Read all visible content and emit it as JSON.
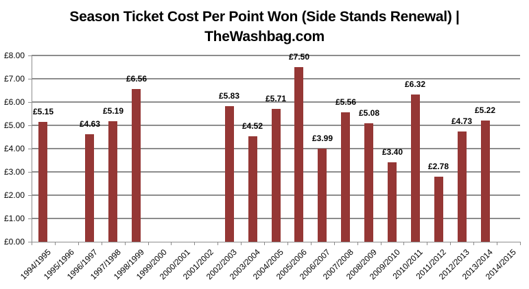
{
  "chart_data": {
    "type": "bar",
    "title": "Season Ticket Cost Per Point Won (Side Stands Renewal) | TheWashbag.com",
    "title_lines": [
      "Season Ticket Cost Per Point Won (Side Stands Renewal) |",
      "TheWashbag.com"
    ],
    "xlabel": "",
    "ylabel": "",
    "ylim": [
      0,
      8
    ],
    "grid": true,
    "legend": "none",
    "bar_color": "#953735",
    "categories": [
      "1994/1995",
      "1995/1996",
      "1996/1997",
      "1997/1998",
      "1998/1999",
      "1999/2000",
      "2000/2001",
      "2001/2002",
      "2002/2003",
      "2003/2004",
      "2004/2005",
      "2005/2006",
      "2006/2007",
      "2007/2008",
      "2008/2009",
      "2009/2010",
      "2010/2011",
      "2011/2012",
      "2012/2013",
      "2013/2014",
      "2014/2015"
    ],
    "values": [
      5.15,
      null,
      4.63,
      5.19,
      6.56,
      null,
      null,
      null,
      5.83,
      4.52,
      5.71,
      7.5,
      3.99,
      5.56,
      5.08,
      3.4,
      6.32,
      2.78,
      4.73,
      5.22,
      null
    ],
    "data_labels": [
      "£5.15",
      "",
      "£4.63",
      "£5.19",
      "£6.56",
      "",
      "",
      "",
      "£5.83",
      "£4.52",
      "£5.71",
      "£7.50",
      "£3.99",
      "£5.56",
      "£5.08",
      "£3.40",
      "£6.32",
      "£2.78",
      "£4.73",
      "£5.22",
      ""
    ],
    "y_ticks": [
      0,
      1,
      2,
      3,
      4,
      5,
      6,
      7,
      8
    ],
    "y_tick_labels": [
      "£0.00",
      "£1.00",
      "£2.00",
      "£3.00",
      "£4.00",
      "£5.00",
      "£6.00",
      "£7.00",
      "£8.00"
    ]
  }
}
